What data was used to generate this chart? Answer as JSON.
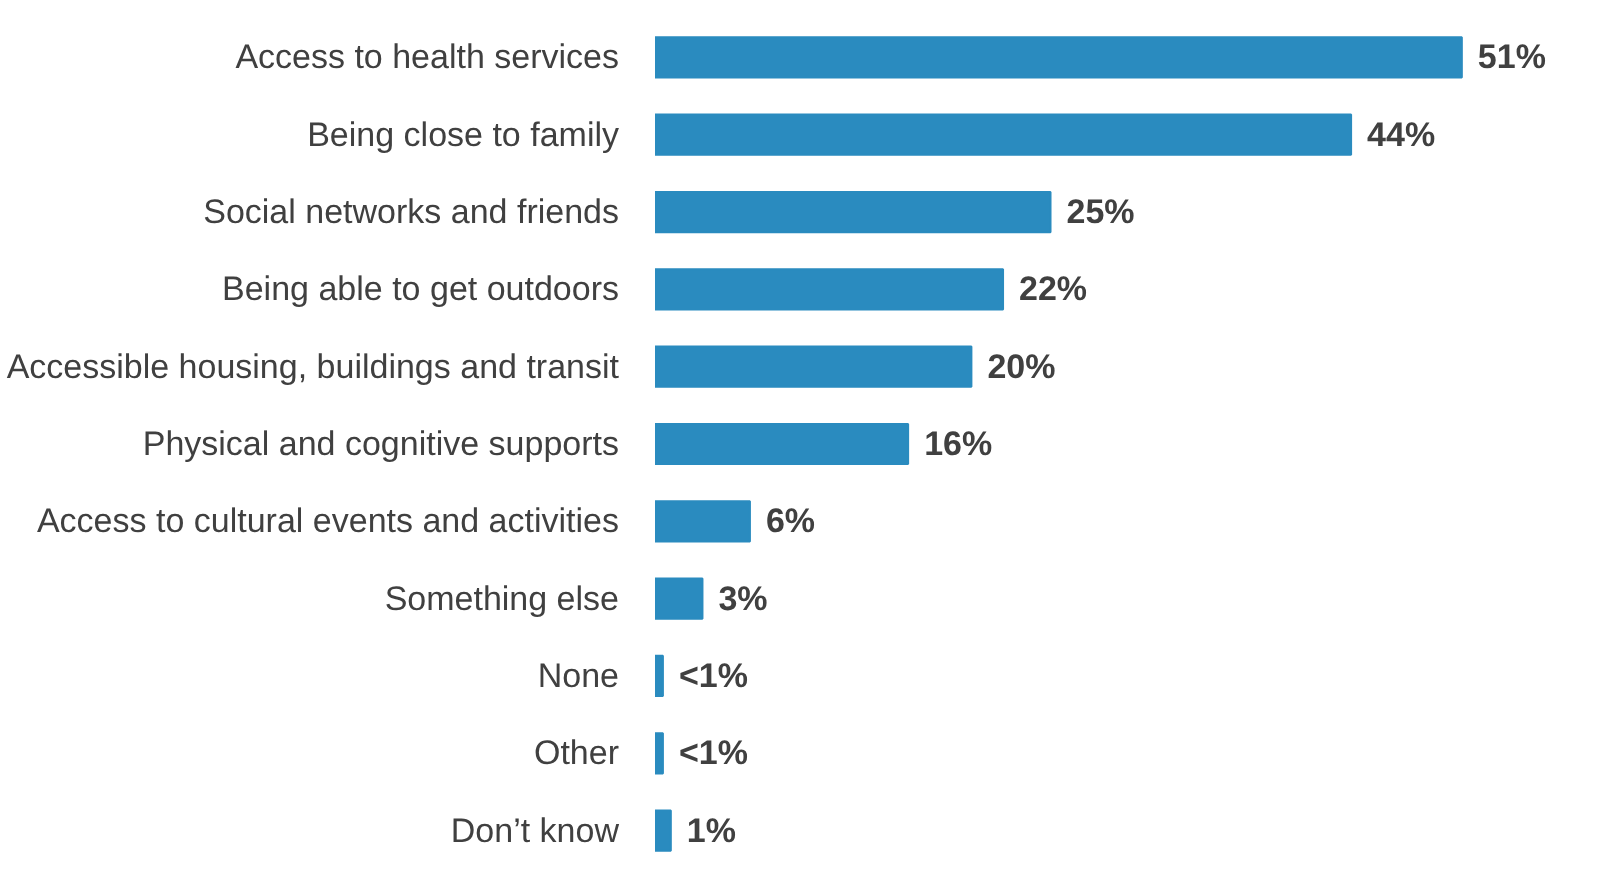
{
  "chart_data": {
    "type": "bar",
    "orientation": "horizontal",
    "categories": [
      "Access to health services",
      "Being close to family",
      "Social networks and friends",
      "Being able to get outdoors",
      "Accessible housing, buildings and transit",
      "Physical and cognitive supports",
      "Access to cultural events and activities",
      "Something else",
      "None",
      "Other",
      "Don’t know"
    ],
    "values": [
      51,
      44,
      25,
      22,
      20,
      16,
      6,
      3,
      0.5,
      0.5,
      1
    ],
    "value_labels": [
      "51%",
      "44%",
      "25%",
      "22%",
      "20%",
      "16%",
      "6%",
      "3%",
      "<1%",
      "<1%",
      "1%"
    ],
    "color": "#2a8bbf",
    "grid": false
  }
}
